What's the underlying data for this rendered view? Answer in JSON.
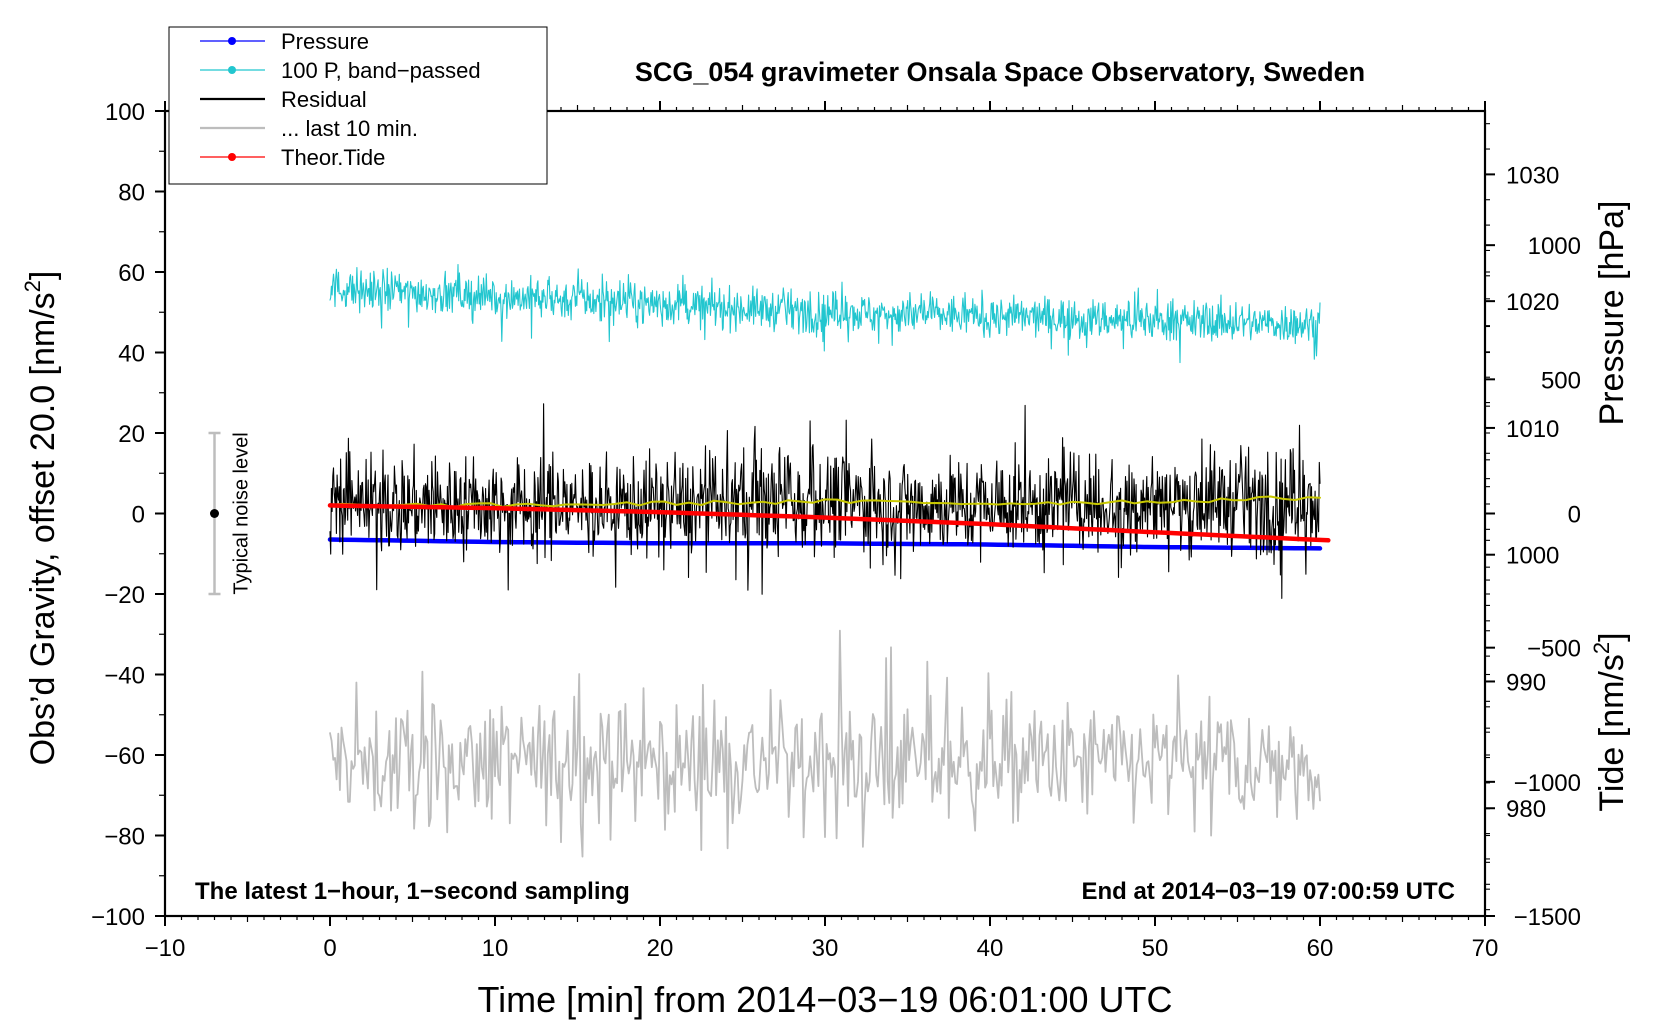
{
  "chart_data": {
    "type": "line",
    "title": "SCG_054 gravimeter Onsala Space Observatory, Sweden",
    "xlabel": "Time [min] from 2014−03−19 06:01:00 UTC",
    "ylabel_left": "Obs’d Gravity, offset 20.0 [nm/s",
    "ylabel_left_sup": "2",
    "ylabel_left_end": "]",
    "ylabel_pressure": "Pressure [hPa]",
    "ylabel_tide": "Tide [nm/s",
    "ylabel_tide_sup": "2",
    "ylabel_tide_end": "]",
    "xlim": [
      -10,
      70
    ],
    "ylim": [
      -100,
      100
    ],
    "pressure_ylim": [
      971.5,
      1035
    ],
    "tide_ylim": [
      -1500,
      1500
    ],
    "x_ticks": [
      "−10",
      "0",
      "10",
      "20",
      "30",
      "40",
      "50",
      "60",
      "70"
    ],
    "x_tick_values": [
      -10,
      0,
      10,
      20,
      30,
      40,
      50,
      60,
      70
    ],
    "y_ticks": [
      "100",
      "80",
      "60",
      "40",
      "20",
      "0",
      "−20",
      "−40",
      "−60",
      "−80",
      "−100"
    ],
    "y_tick_values": [
      100,
      80,
      60,
      40,
      20,
      0,
      -20,
      -40,
      -60,
      -80,
      -100
    ],
    "pressure_ticks": [
      "1030",
      "1020",
      "1010",
      "1000",
      "990",
      "980"
    ],
    "pressure_tick_values": [
      1030,
      1020,
      1010,
      1000,
      990,
      980
    ],
    "tide_ticks": [
      "1000",
      "500",
      "0",
      "−500",
      "−1000",
      "−1500"
    ],
    "tide_tick_values": [
      1000,
      500,
      0,
      -500,
      -1000,
      -1500
    ],
    "legend_position": "top-left",
    "legend": [
      {
        "label": "Pressure",
        "color": "#0000ff",
        "marker": true
      },
      {
        "label": "100 P, band−passed",
        "color": "#22c6cf",
        "marker": true
      },
      {
        "label": "Residual",
        "color": "#000000",
        "marker": false
      },
      {
        "label": "... last 10 min.",
        "color": "#bdbdbd",
        "marker": false
      },
      {
        "label": "Theor.Tide",
        "color": "#ff0000",
        "marker": true
      }
    ],
    "noise_level": {
      "label": "Typical noise level",
      "x": -7,
      "center": 0,
      "low": -20,
      "high": 20
    },
    "annotation_left": "The latest 1−hour, 1−second sampling",
    "annotation_right": "End at 2014−03−19 07:00:59 UTC",
    "series": [
      {
        "name": "Pressure",
        "axis": "pressure",
        "color": "#0000ff",
        "x": [
          0,
          10,
          20,
          30,
          40,
          50,
          60
        ],
        "values": [
          1001.2,
          1001.0,
          1000.9,
          1000.9,
          1000.8,
          1000.6,
          1000.5
        ]
      },
      {
        "name": "100 P, band-passed",
        "axis": "gravity",
        "color": "#22c6cf",
        "x": [
          0,
          10,
          20,
          30,
          40,
          50,
          60
        ],
        "values": [
          56,
          54,
          52,
          50,
          49,
          48,
          47
        ],
        "noise_amplitude": 4
      },
      {
        "name": "Residual",
        "axis": "gravity",
        "color": "#000000",
        "x": [
          0,
          10,
          20,
          30,
          40,
          50,
          60
        ],
        "values": [
          2,
          2,
          2,
          3,
          2,
          3,
          3
        ],
        "noise_amplitude": 10
      },
      {
        "name": "Residual smoothed",
        "axis": "gravity",
        "color": "#c8c800",
        "x": [
          0,
          10,
          20,
          30,
          40,
          50,
          60
        ],
        "values": [
          2,
          2,
          2.5,
          3,
          2.5,
          3,
          4
        ]
      },
      {
        "name": "... last 10 min.",
        "axis": "gravity",
        "color": "#bdbdbd",
        "x": [
          0,
          10,
          20,
          30,
          40,
          50,
          60
        ],
        "values": [
          -62,
          -62,
          -62,
          -62,
          -62,
          -62,
          -62
        ],
        "noise_amplitude": 12
      },
      {
        "name": "Theor.Tide",
        "axis": "tide",
        "color": "#ff0000",
        "x": [
          0,
          10,
          20,
          30,
          40,
          50,
          60.5
        ],
        "values": [
          30,
          20,
          5,
          -15,
          -40,
          -70,
          -100
        ]
      }
    ]
  }
}
